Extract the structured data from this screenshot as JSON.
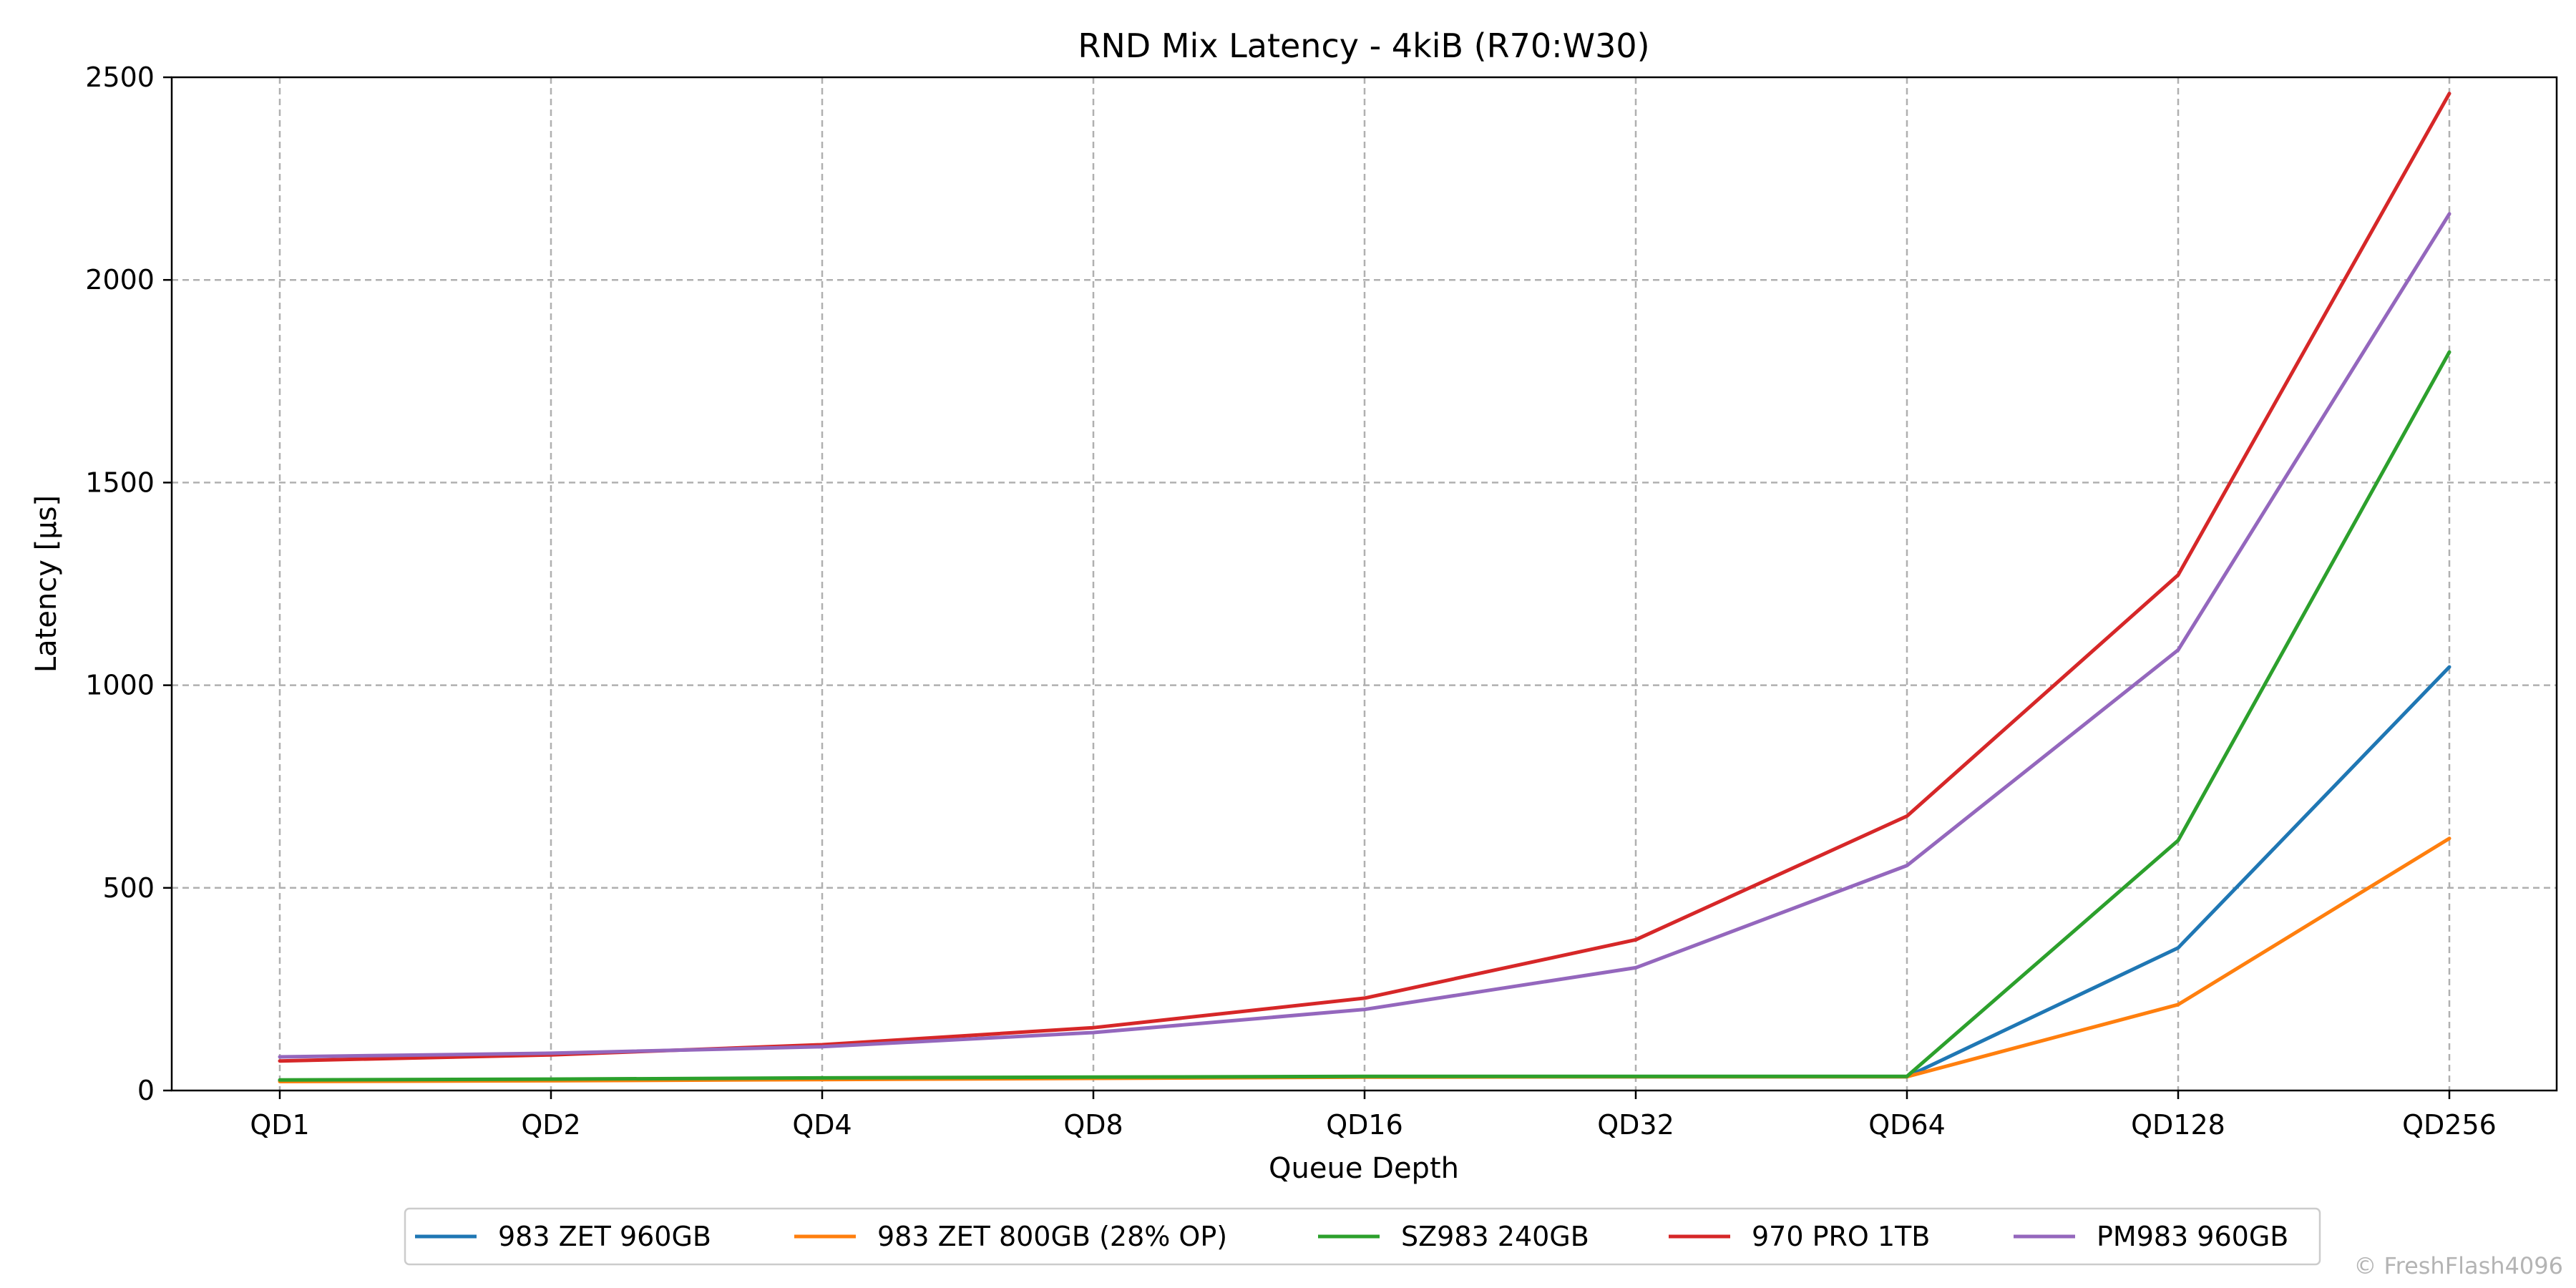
{
  "chart_data": {
    "type": "line",
    "title": "RND Mix Latency - 4kiB (R70:W30)",
    "xlabel": "Queue Depth",
    "ylabel": "Latency [µs]",
    "categories": [
      "QD1",
      "QD2",
      "QD4",
      "QD8",
      "QD16",
      "QD32",
      "QD64",
      "QD128",
      "QD256"
    ],
    "ylim": [
      0,
      2500
    ],
    "yticks": [
      0,
      500,
      1000,
      1500,
      2000,
      2500
    ],
    "grid": true,
    "legend_position": "bottom-center",
    "series": [
      {
        "name": "983 ZET 960GB",
        "color": "#1f77b4",
        "values": [
          25,
          27,
          30,
          32,
          34,
          34,
          34,
          352,
          1045
        ]
      },
      {
        "name": "983 ZET 800GB (28% OP)",
        "color": "#ff7f0e",
        "values": [
          22,
          24,
          27,
          30,
          33,
          34,
          34,
          212,
          622
        ]
      },
      {
        "name": "SZ983 240GB",
        "color": "#2ca02c",
        "values": [
          26,
          28,
          31,
          33,
          35,
          35,
          35,
          617,
          1822
        ]
      },
      {
        "name": "970 PRO 1TB",
        "color": "#d62728",
        "values": [
          73,
          88,
          113,
          155,
          228,
          372,
          677,
          1272,
          2460
        ]
      },
      {
        "name": "PM983 960GB",
        "color": "#9467bd",
        "values": [
          83,
          92,
          108,
          143,
          200,
          303,
          555,
          1087,
          2163
        ]
      }
    ]
  },
  "watermark": "© FreshFlash4096"
}
